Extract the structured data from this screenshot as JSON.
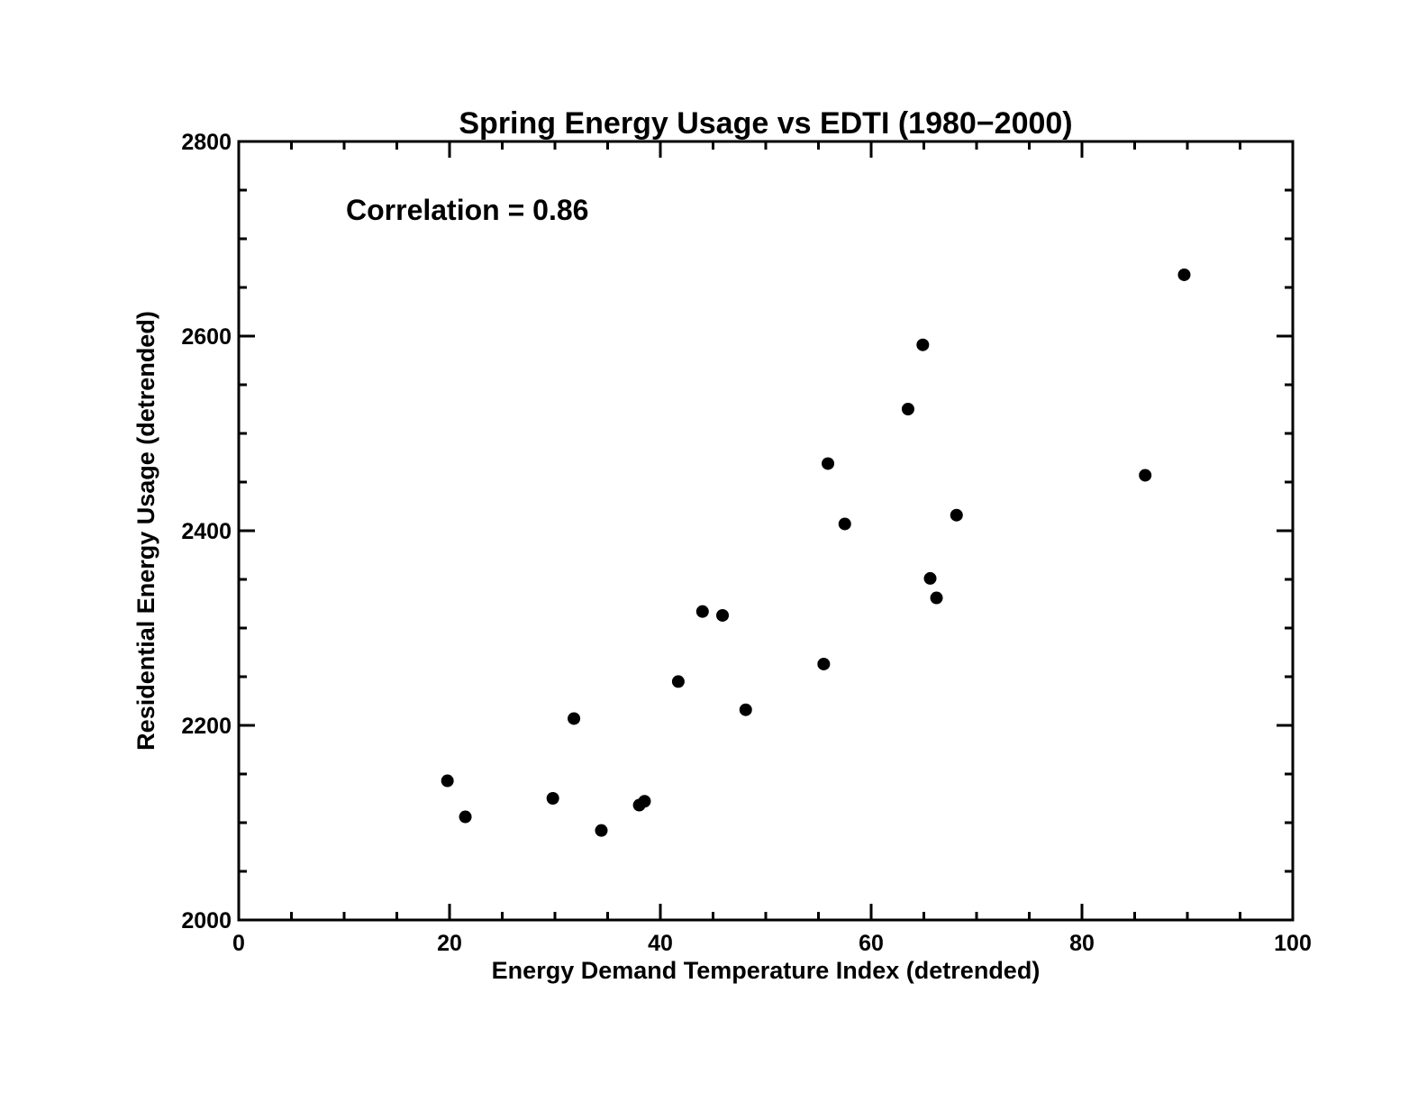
{
  "chart_data": {
    "type": "scatter",
    "title": "Spring Energy Usage vs EDTI  (1980−2000)",
    "xlabel": "Energy Demand Temperature Index (detrended)",
    "ylabel": "Residential Energy Usage (detrended)",
    "annotation": "Correlation = 0.86",
    "xlim": [
      0,
      100
    ],
    "ylim": [
      2000,
      2800
    ],
    "xticks": [
      0,
      20,
      40,
      60,
      80,
      100
    ],
    "xtick_labels": [
      "0",
      "20",
      "40",
      "60",
      "80",
      "100"
    ],
    "yticks": [
      2000,
      2200,
      2400,
      2600,
      2800
    ],
    "ytick_labels": [
      "2000",
      "2200",
      "2400",
      "2600",
      "2800"
    ],
    "x_minor_step": 5,
    "y_minor_step": 50,
    "grid": false,
    "marker_color": "#000000",
    "points": [
      {
        "x": 19.8,
        "y": 2143
      },
      {
        "x": 21.5,
        "y": 2106
      },
      {
        "x": 29.8,
        "y": 2125
      },
      {
        "x": 31.8,
        "y": 2207
      },
      {
        "x": 34.4,
        "y": 2092
      },
      {
        "x": 38.0,
        "y": 2118
      },
      {
        "x": 38.5,
        "y": 2122
      },
      {
        "x": 41.7,
        "y": 2245
      },
      {
        "x": 44.0,
        "y": 2317
      },
      {
        "x": 45.9,
        "y": 2313
      },
      {
        "x": 48.1,
        "y": 2216
      },
      {
        "x": 55.5,
        "y": 2263
      },
      {
        "x": 55.9,
        "y": 2469
      },
      {
        "x": 57.5,
        "y": 2407
      },
      {
        "x": 63.5,
        "y": 2525
      },
      {
        "x": 64.9,
        "y": 2591
      },
      {
        "x": 65.6,
        "y": 2351
      },
      {
        "x": 66.2,
        "y": 2331
      },
      {
        "x": 68.1,
        "y": 2416
      },
      {
        "x": 86.0,
        "y": 2457
      },
      {
        "x": 89.7,
        "y": 2663
      }
    ]
  }
}
